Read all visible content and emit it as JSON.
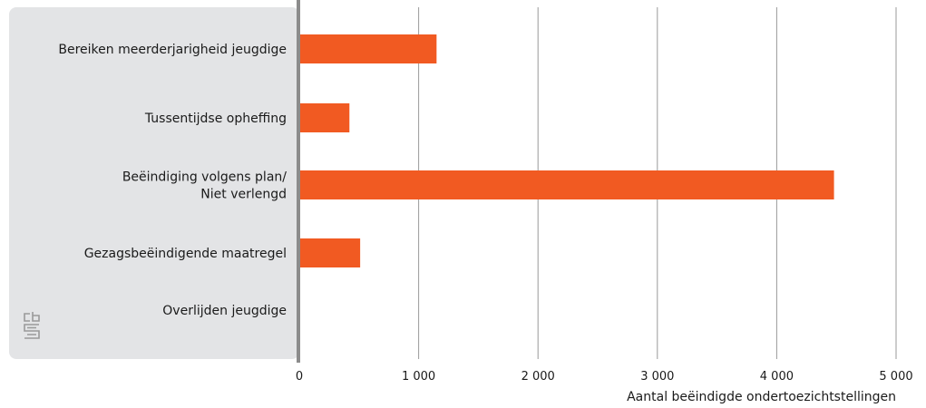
{
  "chart_data": {
    "type": "bar",
    "orientation": "horizontal",
    "categories": [
      [
        "Bereiken meerderjarigheid jeugdige"
      ],
      [
        "Tussentijdse opheffing"
      ],
      [
        "Beëindiging volgens plan/",
        "Niet verlengd"
      ],
      [
        "Gezagsbeëindigende maatregel"
      ],
      [
        "Overlijden jeugdige"
      ]
    ],
    "values": [
      1150,
      420,
      4480,
      510,
      0
    ],
    "xlabel": "Aantal beëindigde ondertoezichtstellingen",
    "xlim": [
      0,
      5000
    ],
    "xticks": [
      0,
      1000,
      2000,
      3000,
      4000,
      5000
    ],
    "xtick_labels": [
      "0",
      "1 000",
      "2 000",
      "3 000",
      "4 000",
      "5 000"
    ],
    "grid": true,
    "colors": {
      "bar": "#f15a22",
      "label_panel": "#e3e4e6",
      "axis": "#8c8c8c",
      "grid": "#9a9a9a",
      "logo": "#9a9a9a"
    },
    "logo_icon": "cbs-logo-icon"
  }
}
